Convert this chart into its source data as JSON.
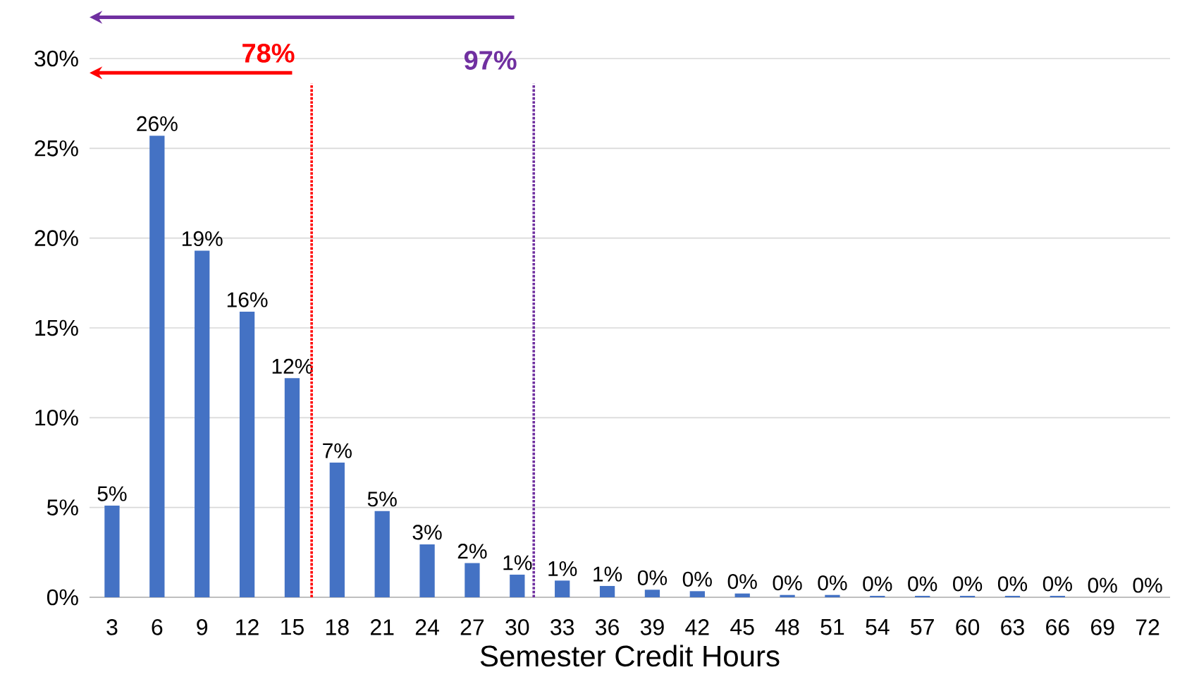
{
  "chart_data": {
    "type": "bar",
    "xlabel": "Semester Credit Hours",
    "x": [
      3,
      6,
      9,
      12,
      15,
      18,
      21,
      24,
      27,
      30,
      33,
      36,
      39,
      42,
      45,
      48,
      51,
      54,
      57,
      60,
      63,
      66,
      69,
      72
    ],
    "values": [
      5.1,
      25.7,
      19.3,
      15.9,
      12.2,
      7.5,
      4.8,
      2.95,
      1.9,
      1.26,
      0.93,
      0.63,
      0.42,
      0.34,
      0.21,
      0.13,
      0.13,
      0.08,
      0.08,
      0.08,
      0.08,
      0.08,
      0,
      0
    ],
    "value_labels": [
      "5%",
      "26%",
      "19%",
      "16%",
      "12%",
      "7%",
      "5%",
      "3%",
      "2%",
      "1%",
      "1%",
      "1%",
      "0%",
      "0%",
      "0%",
      "0%",
      "0%",
      "0%",
      "0%",
      "0%",
      "0%",
      "0%",
      "0%",
      "0%"
    ],
    "color": "#4472c4",
    "xlim": [
      1.5,
      73.5
    ],
    "xticks": [
      3,
      6,
      9,
      12,
      15,
      18,
      21,
      24,
      27,
      30,
      33,
      36,
      39,
      42,
      45,
      48,
      51,
      54,
      57,
      60,
      63,
      66,
      69,
      72
    ],
    "ylim": [
      0,
      30
    ],
    "yticks": [
      {
        "value": 0,
        "label": "0%"
      },
      {
        "value": 5,
        "label": "5%"
      },
      {
        "value": 10,
        "label": "10%"
      },
      {
        "value": 15,
        "label": "15%"
      },
      {
        "value": 20,
        "label": "20%"
      },
      {
        "value": 25,
        "label": "25%"
      },
      {
        "value": 30,
        "label": "30%"
      }
    ],
    "grid": "y",
    "ref_lines": [
      {
        "axis": "x",
        "value": 16.3,
        "color": "#ff0000",
        "line_style": "dotted"
      },
      {
        "axis": "x",
        "value": 31.1,
        "color": "#7030a0",
        "line_style": "dotted"
      }
    ],
    "annotations": [
      "78%",
      "97%"
    ]
  }
}
